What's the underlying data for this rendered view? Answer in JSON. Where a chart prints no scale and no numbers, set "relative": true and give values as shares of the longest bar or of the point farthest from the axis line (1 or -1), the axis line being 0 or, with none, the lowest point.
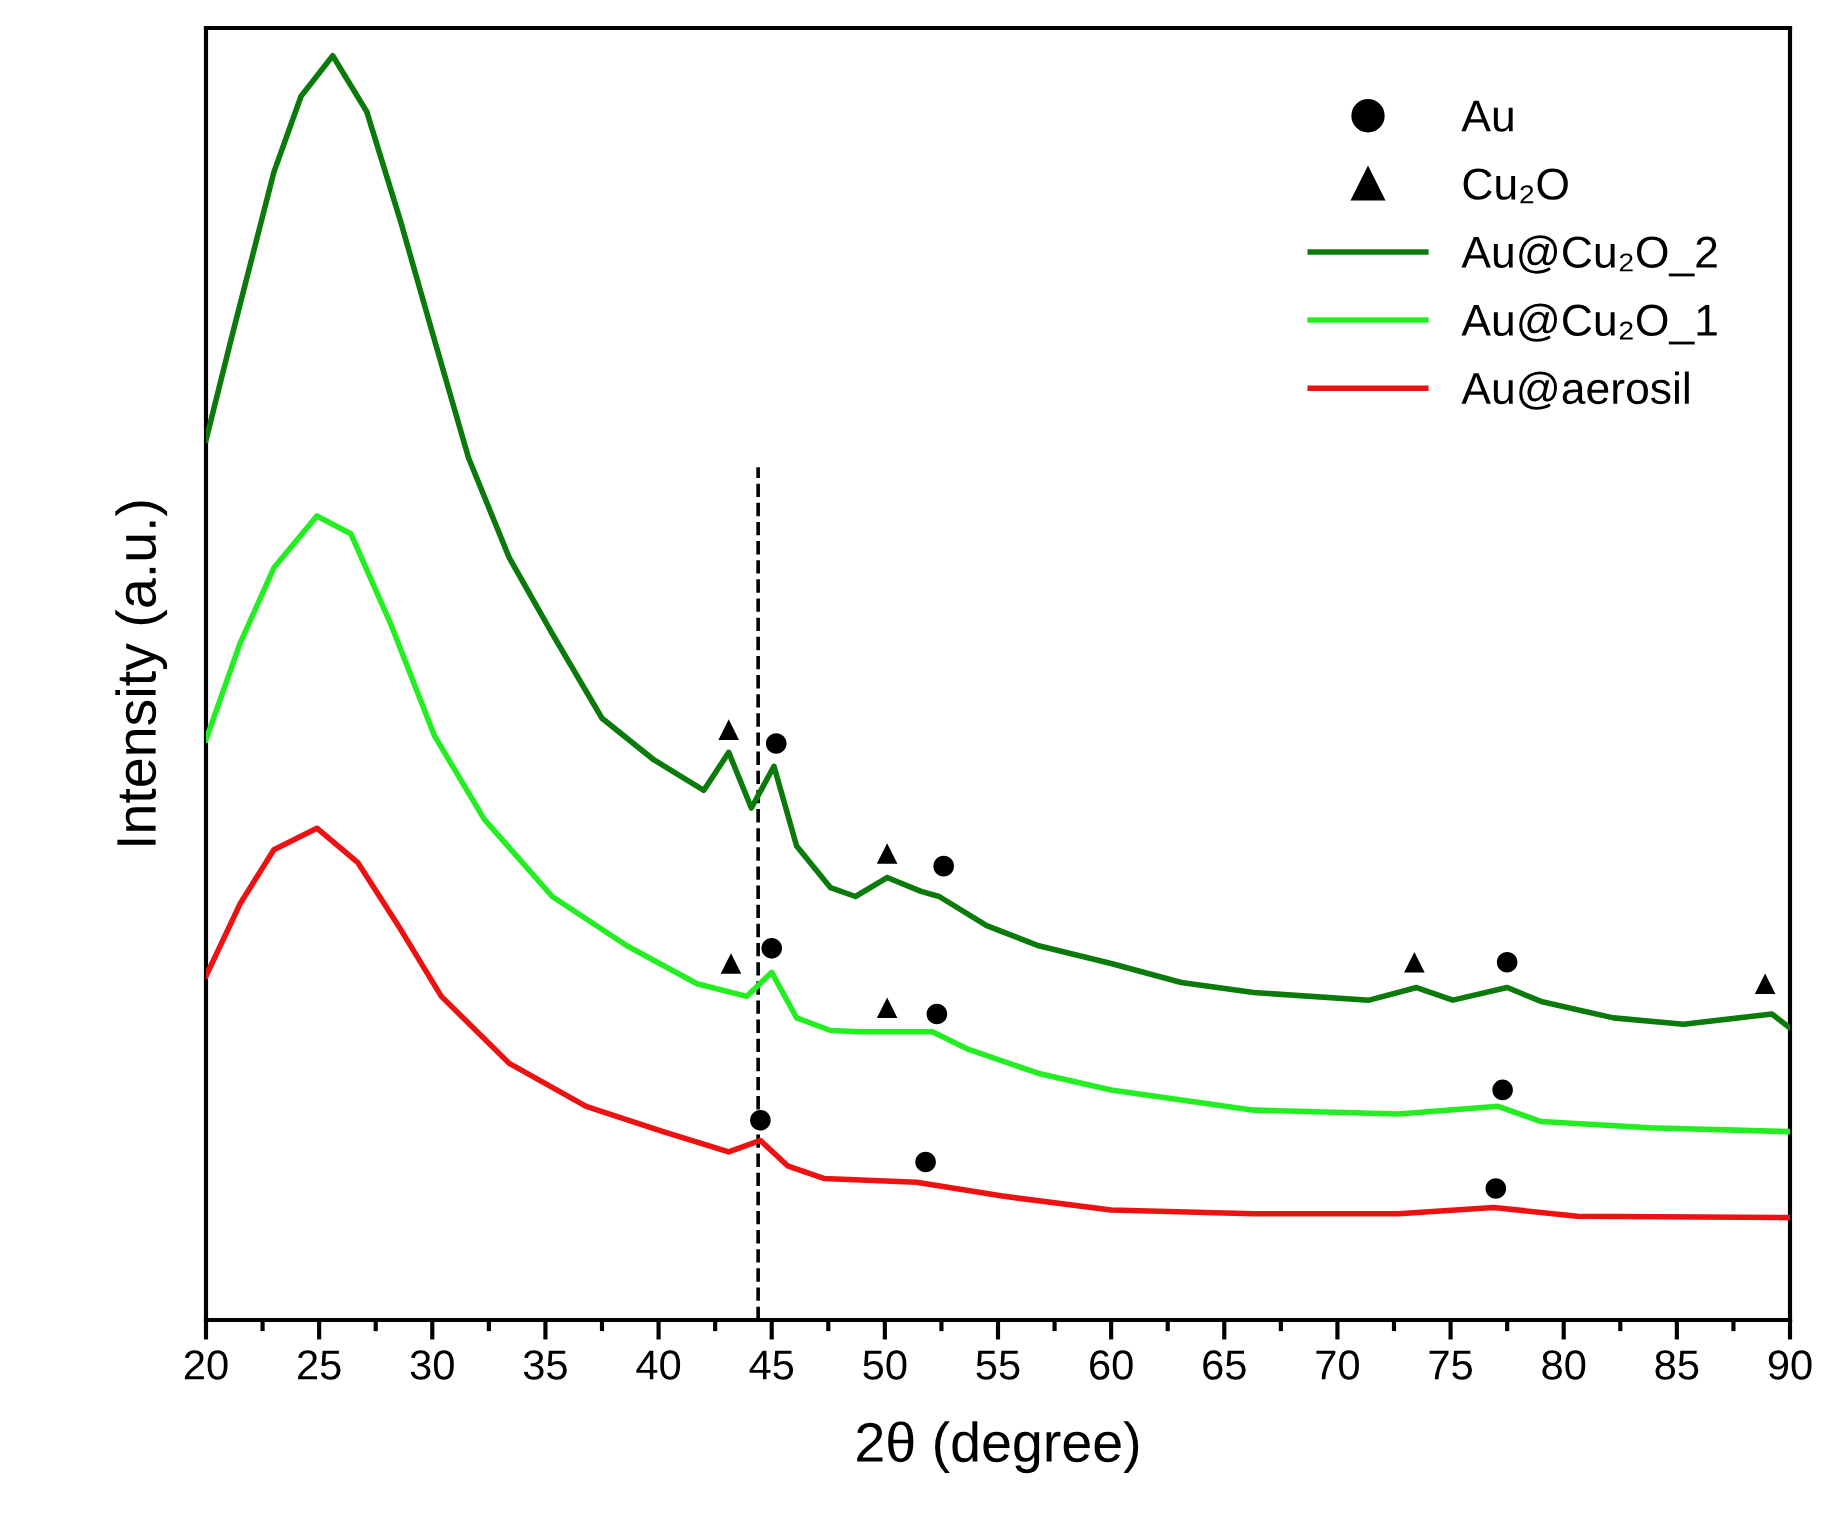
{
  "chart_data": {
    "type": "line",
    "relative": true,
    "xlabel": "2θ (degree)",
    "ylabel": "Intensity (a.u.)",
    "xlim": [
      20,
      90
    ],
    "xticks": [
      20,
      25,
      30,
      35,
      40,
      45,
      50,
      55,
      60,
      65,
      70,
      75,
      80,
      85,
      90
    ],
    "tick_labels": "x",
    "grid": false,
    "legend": "top right",
    "marker": "none",
    "line_style": "solid",
    "series": [
      {
        "name": "Au",
        "type": "scatter",
        "marker": "circle",
        "color": "#000000",
        "x": [
          45.2,
          52.6,
          77.5,
          45.0,
          52.3,
          77.3,
          44.5,
          51.8,
          77.0
        ],
        "values": [
          0.456,
          0.359,
          0.283,
          0.294,
          0.242,
          0.182,
          0.158,
          0.125,
          0.104
        ]
      },
      {
        "name": "Cu₂O",
        "type": "scatter",
        "marker": "triangle",
        "color": "#000000",
        "x": [
          43.1,
          50.1,
          73.4,
          88.9,
          43.2,
          50.1
        ],
        "values": [
          0.467,
          0.369,
          0.283,
          0.266,
          0.282,
          0.247
        ]
      },
      {
        "name": "Au@Cu₂O_2",
        "color": "#0a7a0a",
        "x": [
          20.0,
          21.1,
          23.0,
          24.2,
          25.6,
          27.1,
          28.6,
          30.1,
          31.6,
          33.4,
          35.3,
          37.5,
          39.8,
          42.0,
          43.1,
          44.1,
          45.1,
          46.1,
          47.6,
          48.7,
          50.1,
          51.6,
          52.4,
          54.5,
          56.8,
          60.0,
          63.1,
          66.3,
          71.4,
          73.5,
          75.1,
          77.5,
          79.0,
          82.2,
          85.3,
          89.2,
          90.0
        ],
        "values": [
          0.696,
          0.775,
          0.908,
          0.968,
          1.0,
          0.956,
          0.869,
          0.775,
          0.682,
          0.603,
          0.543,
          0.476,
          0.443,
          0.419,
          0.449,
          0.405,
          0.438,
          0.375,
          0.342,
          0.335,
          0.35,
          0.339,
          0.335,
          0.312,
          0.296,
          0.282,
          0.267,
          0.259,
          0.253,
          0.263,
          0.253,
          0.263,
          0.252,
          0.239,
          0.234,
          0.242,
          0.231
        ]
      },
      {
        "name": "Au@Cu₂O_1",
        "color": "#22ee22",
        "x": [
          20.0,
          21.5,
          23.0,
          24.9,
          26.4,
          28.2,
          30.1,
          32.3,
          35.3,
          38.6,
          41.7,
          43.9,
          45.0,
          46.1,
          47.6,
          48.9,
          52.1,
          53.7,
          56.8,
          60.0,
          66.3,
          72.7,
          77.1,
          79.0,
          83.8,
          90.0
        ],
        "values": [
          0.459,
          0.535,
          0.595,
          0.636,
          0.622,
          0.549,
          0.462,
          0.396,
          0.335,
          0.296,
          0.266,
          0.256,
          0.275,
          0.239,
          0.229,
          0.228,
          0.228,
          0.214,
          0.195,
          0.182,
          0.166,
          0.163,
          0.169,
          0.157,
          0.152,
          0.149
        ]
      },
      {
        "name": "Au@aerosil",
        "color": "#ee1111",
        "x": [
          20.0,
          21.5,
          23.0,
          24.9,
          26.7,
          28.6,
          30.4,
          33.4,
          36.8,
          40.2,
          43.1,
          44.5,
          45.7,
          47.3,
          51.4,
          55.2,
          60.0,
          66.3,
          72.7,
          76.9,
          80.6,
          90.0
        ],
        "values": [
          0.272,
          0.329,
          0.372,
          0.389,
          0.362,
          0.309,
          0.256,
          0.203,
          0.169,
          0.149,
          0.133,
          0.142,
          0.122,
          0.112,
          0.109,
          0.098,
          0.087,
          0.084,
          0.084,
          0.089,
          0.082,
          0.081
        ]
      }
    ],
    "ref_lines": [
      {
        "axis": "x",
        "value": 44.4,
        "color": "#000000",
        "line_style": "dashed"
      }
    ]
  }
}
